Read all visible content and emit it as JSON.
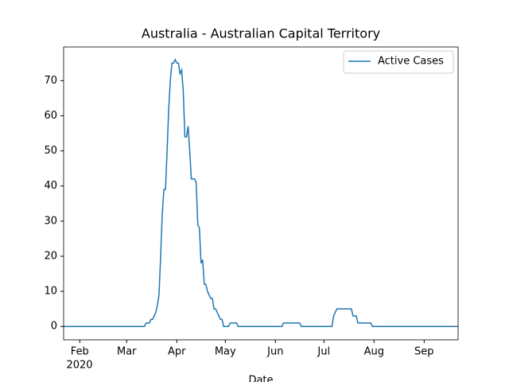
{
  "chart_data": {
    "type": "line",
    "title": "Australia - Australian Capital Territory",
    "xlabel": "Date",
    "x_year_label": "2020",
    "categories": [
      null,
      null,
      null,
      null,
      null,
      null,
      null,
      null,
      null,
      null,
      "Feb",
      null,
      null,
      null,
      null,
      null,
      null,
      null,
      null,
      null,
      null,
      null,
      null,
      null,
      null,
      null,
      null,
      null,
      null,
      null,
      null,
      null,
      null,
      null,
      null,
      null,
      null,
      null,
      null,
      "Mar",
      null,
      null,
      null,
      null,
      null,
      null,
      null,
      null,
      null,
      null,
      null,
      null,
      null,
      null,
      null,
      null,
      null,
      null,
      null,
      null,
      null,
      null,
      null,
      null,
      null,
      null,
      null,
      null,
      null,
      null,
      "Apr",
      null,
      null,
      null,
      null,
      null,
      null,
      null,
      null,
      null,
      null,
      null,
      null,
      null,
      null,
      null,
      null,
      null,
      null,
      null,
      null,
      null,
      null,
      null,
      null,
      null,
      null,
      null,
      null,
      null,
      "May",
      null,
      null,
      null,
      null,
      null,
      null,
      null,
      null,
      null,
      null,
      null,
      null,
      null,
      null,
      null,
      null,
      null,
      null,
      null,
      null,
      null,
      null,
      null,
      null,
      null,
      null,
      null,
      null,
      null,
      null,
      "Jun",
      null,
      null,
      null,
      null,
      null,
      null,
      null,
      null,
      null,
      null,
      null,
      null,
      null,
      null,
      null,
      null,
      null,
      null,
      null,
      null,
      null,
      null,
      null,
      null,
      null,
      null,
      null,
      null,
      null,
      "Jul",
      null,
      null,
      null,
      null,
      null,
      null,
      null,
      null,
      null,
      null,
      null,
      null,
      null,
      null,
      null,
      null,
      null,
      null,
      null,
      null,
      null,
      null,
      null,
      null,
      null,
      null,
      null,
      null,
      null,
      null,
      "Aug",
      null,
      null,
      null,
      null,
      null,
      null,
      null,
      null,
      null,
      null,
      null,
      null,
      null,
      null,
      null,
      null,
      null,
      null,
      null,
      null,
      null,
      null,
      null,
      null,
      null,
      null,
      null,
      null,
      null,
      null,
      "Sep",
      null,
      null,
      null,
      null,
      null,
      null,
      null,
      null,
      null,
      null,
      null,
      null,
      null,
      null,
      null,
      null,
      null,
      null,
      null,
      null,
      null
    ],
    "series": [
      {
        "name": "Active Cases",
        "color": "#1f77b4",
        "values": [
          0,
          0,
          0,
          0,
          0,
          0,
          0,
          0,
          0,
          0,
          0,
          0,
          0,
          0,
          0,
          0,
          0,
          0,
          0,
          0,
          0,
          0,
          0,
          0,
          0,
          0,
          0,
          0,
          0,
          0,
          0,
          0,
          0,
          0,
          0,
          0,
          0,
          0,
          0,
          0,
          0,
          0,
          0,
          0,
          0,
          0,
          0,
          0,
          0,
          0,
          0,
          1,
          1,
          1,
          2,
          2,
          3,
          4,
          6,
          9,
          20,
          32,
          39,
          39,
          50,
          62,
          70,
          75,
          75,
          76,
          75,
          75,
          72,
          73,
          67,
          54,
          54,
          57,
          50,
          42,
          42,
          42,
          41,
          29,
          28,
          18,
          19,
          12,
          12,
          10,
          9,
          8,
          8,
          5,
          5,
          4,
          3,
          2,
          2,
          0,
          0,
          0,
          0,
          1,
          1,
          1,
          1,
          1,
          0,
          0,
          0,
          0,
          0,
          0,
          0,
          0,
          0,
          0,
          0,
          0,
          0,
          0,
          0,
          0,
          0,
          0,
          0,
          0,
          0,
          0,
          0,
          0,
          0,
          0,
          0,
          0,
          1,
          1,
          1,
          1,
          1,
          1,
          1,
          1,
          1,
          1,
          1,
          0,
          0,
          0,
          0,
          0,
          0,
          0,
          0,
          0,
          0,
          0,
          0,
          0,
          0,
          0,
          0,
          0,
          0,
          0,
          0,
          3,
          4,
          5,
          5,
          5,
          5,
          5,
          5,
          5,
          5,
          5,
          5,
          3,
          3,
          3,
          1,
          1,
          1,
          1,
          1,
          1,
          1,
          1,
          1,
          0,
          0,
          0,
          0,
          0,
          0,
          0,
          0,
          0,
          0,
          0,
          0,
          0,
          0,
          0,
          0,
          0,
          0,
          0,
          0,
          0,
          0,
          0,
          0,
          0,
          0,
          0,
          0,
          0,
          0,
          0,
          0,
          0,
          0,
          0,
          0,
          0,
          0,
          0,
          0,
          0,
          0,
          0,
          0,
          0,
          0,
          0,
          0,
          0,
          0,
          0,
          0,
          0,
          0
        ]
      }
    ],
    "ylim": [
      -3.8,
      79.6
    ],
    "yticks": [
      0,
      10,
      20,
      30,
      40,
      50,
      60,
      70
    ],
    "legend": "upper right"
  }
}
